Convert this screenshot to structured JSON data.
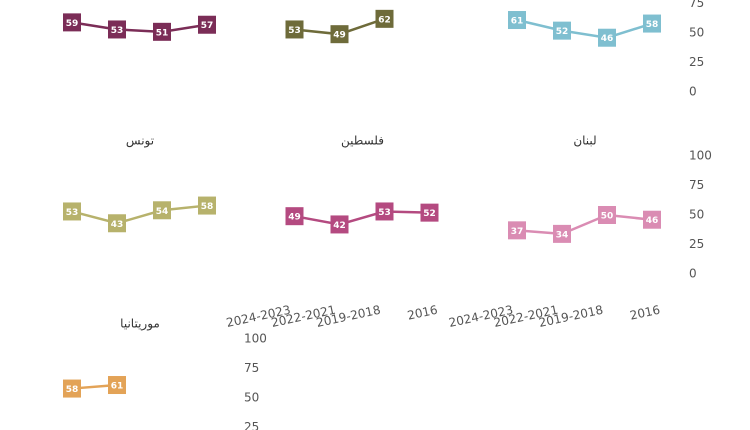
{
  "chart_data": [
    {
      "type": "line",
      "color": "#7b2d57",
      "values": [
        59,
        53,
        51,
        57
      ],
      "ylim": [
        0,
        100
      ]
    },
    {
      "type": "line",
      "color": "#6e6b3a",
      "values": [
        53,
        49,
        62
      ],
      "ylim": [
        0,
        100
      ]
    },
    {
      "type": "line",
      "color": "#7fbfd0",
      "values": [
        61,
        52,
        46,
        58
      ],
      "ylim": [
        0,
        100
      ],
      "yticks": [
        0,
        25,
        50,
        75
      ]
    },
    {
      "type": "line",
      "title": "تونس",
      "color": "#b7b26c",
      "values": [
        53,
        43,
        54,
        58
      ],
      "ylim": [
        0,
        100
      ]
    },
    {
      "type": "line",
      "title": "فلسطين",
      "color": "#b44a80",
      "categories": [
        "2024-2023",
        "2022-2021",
        "2019-2018",
        "2016"
      ],
      "values": [
        49,
        42,
        53,
        52
      ],
      "ylim": [
        0,
        100
      ]
    },
    {
      "type": "line",
      "title": "لبنان",
      "color": "#da8cb3",
      "categories": [
        "2024-2023",
        "2022-2021",
        "2019-2018",
        "2016"
      ],
      "values": [
        37,
        34,
        50,
        46
      ],
      "ylim": [
        0,
        100
      ],
      "yticks": [
        0,
        25,
        50,
        75,
        100
      ]
    },
    {
      "type": "line",
      "title": "موريتانيا",
      "color": "#e3a357",
      "values": [
        58,
        61
      ],
      "ylim": [
        0,
        100
      ],
      "yticks": [
        25,
        50,
        75,
        100
      ]
    }
  ]
}
